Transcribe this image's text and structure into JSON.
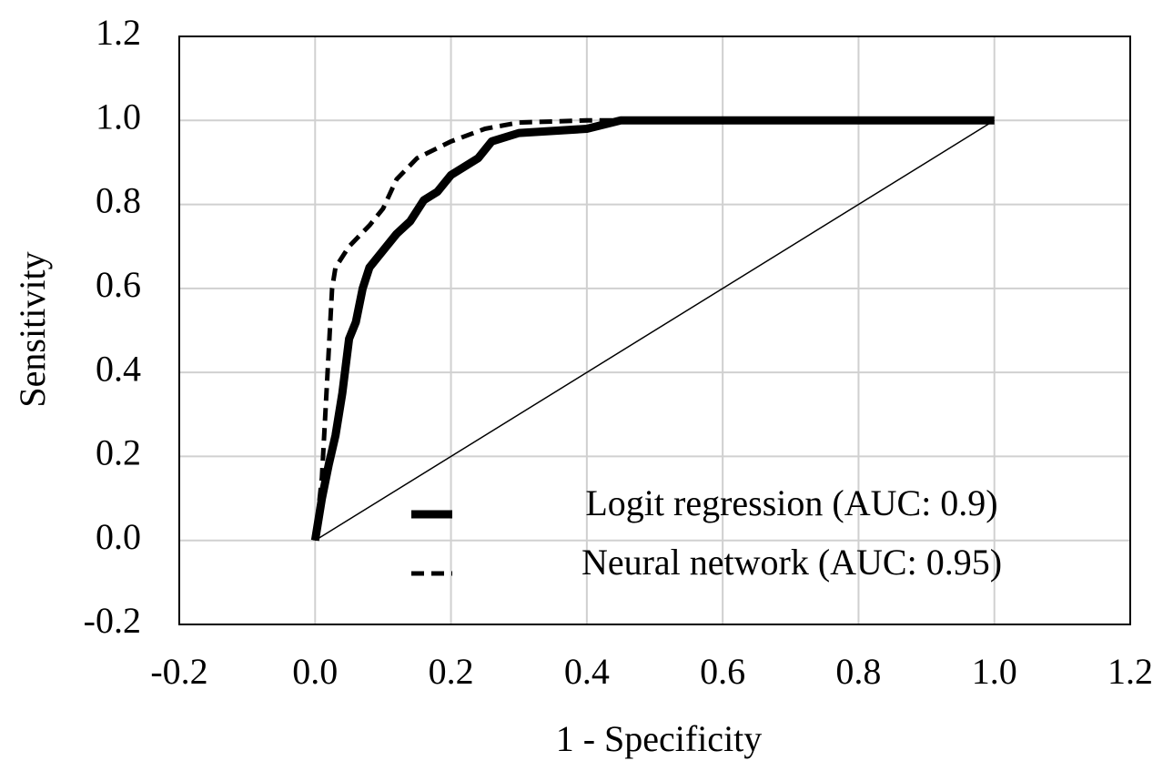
{
  "chart_data": {
    "type": "line",
    "xlabel": "1 - Specificity",
    "ylabel": "Sensitivity",
    "xlim": [
      -0.2,
      1.2
    ],
    "ylim": [
      -0.2,
      1.2
    ],
    "xticks": [
      -0.2,
      {
        "value": 0,
        "label": "0.0"
      },
      0.2,
      0.4,
      0.6,
      0.8,
      {
        "value": 1,
        "label": "1.0"
      },
      1.2
    ],
    "yticks": [
      -0.2,
      {
        "value": 0,
        "label": "0.0"
      },
      0.2,
      0.4,
      0.6,
      0.8,
      {
        "value": 1,
        "label": "1.0"
      },
      1.2
    ],
    "grid": true,
    "legend": "lower right",
    "series": [
      {
        "name": "Logit regression (AUC: 0.9)",
        "color": "#000000",
        "style": "solid",
        "x": [
          0,
          0.01,
          0.02,
          0.03,
          0.04,
          0.05,
          0.06,
          0.07,
          0.08,
          0.1,
          0.12,
          0.14,
          0.16,
          0.18,
          0.2,
          0.22,
          0.24,
          0.26,
          0.3,
          0.4,
          0.45,
          1.0
        ],
        "values": [
          0,
          0.1,
          0.18,
          0.25,
          0.35,
          0.48,
          0.52,
          0.6,
          0.65,
          0.69,
          0.73,
          0.76,
          0.81,
          0.83,
          0.87,
          0.89,
          0.91,
          0.95,
          0.97,
          0.98,
          1.0,
          1.0
        ]
      },
      {
        "name": "Neural network (AUC: 0.95)",
        "color": "#000000",
        "style": "dashed",
        "x": [
          0,
          0.01,
          0.015,
          0.02,
          0.025,
          0.03,
          0.05,
          0.08,
          0.1,
          0.12,
          0.15,
          0.2,
          0.25,
          0.3,
          0.4,
          1.0
        ],
        "values": [
          0,
          0.15,
          0.3,
          0.45,
          0.6,
          0.65,
          0.7,
          0.75,
          0.79,
          0.86,
          0.91,
          0.95,
          0.98,
          0.995,
          1.0,
          1.0
        ]
      },
      {
        "color": "#000000",
        "style": "thin",
        "x": [
          0,
          1.0
        ],
        "values": [
          0,
          1.0
        ]
      }
    ]
  }
}
